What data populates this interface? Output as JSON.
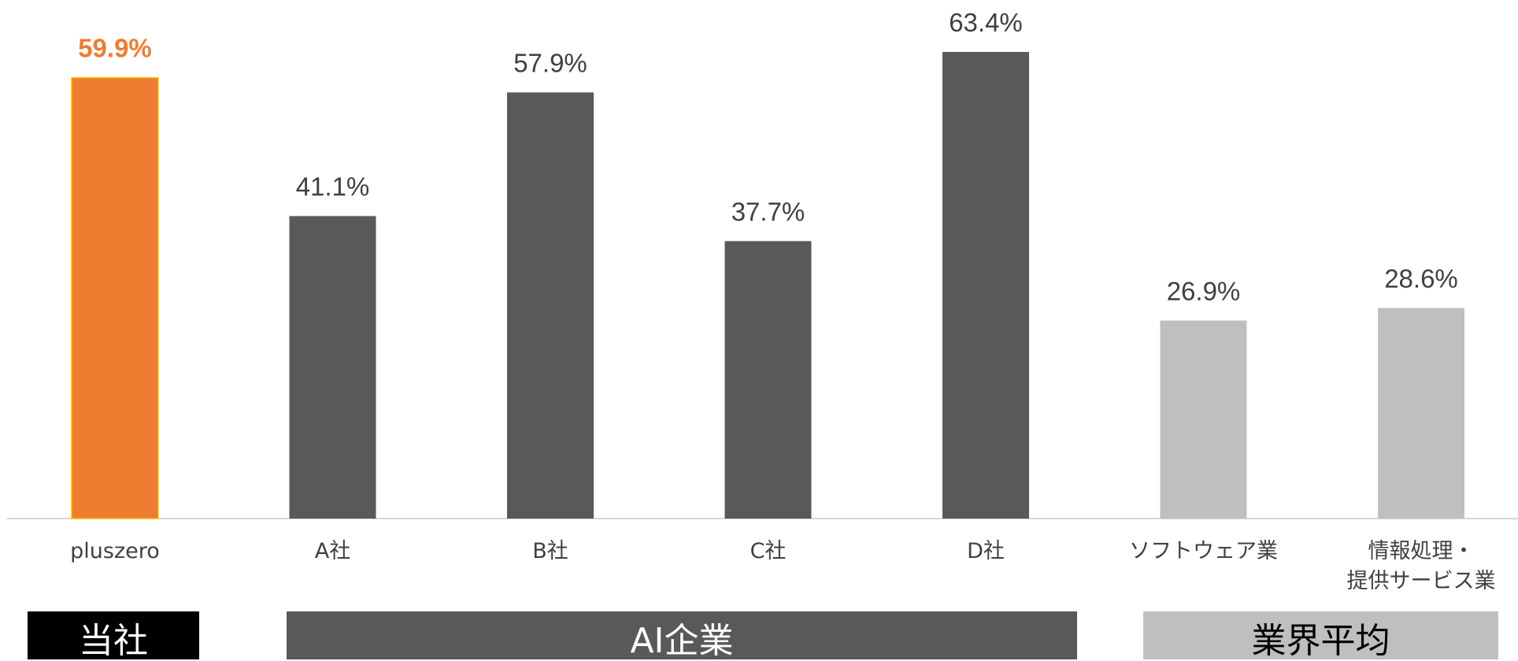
{
  "chart_data": {
    "type": "bar",
    "categories": [
      "pluszero",
      "A社",
      "B社",
      "C社",
      "D社",
      "ソフトウェア業",
      [
        "情報処理・",
        "提供サービス業"
      ]
    ],
    "values": [
      59.9,
      41.1,
      57.9,
      37.7,
      63.4,
      26.9,
      28.6
    ],
    "value_labels": [
      "59.9%",
      "41.1%",
      "57.9%",
      "37.7%",
      "63.4%",
      "26.9%",
      "28.6%"
    ],
    "bar_colors": [
      "#ED7D31",
      "#595959",
      "#595959",
      "#595959",
      "#595959",
      "#BFBFBF",
      "#BFBFBF"
    ],
    "highlight_label_color": "#ED7D31",
    "label_color": "#404040",
    "ylim": [
      0,
      63.4
    ],
    "grid": false,
    "legend": "none"
  },
  "groups": [
    {
      "label": "当社",
      "bg": "#000000",
      "fg": "#ffffff"
    },
    {
      "label": "AI企業",
      "bg": "#595959",
      "fg": "#ffffff"
    },
    {
      "label": "業界平均",
      "bg": "#BFBFBF",
      "fg": "#000000"
    }
  ]
}
